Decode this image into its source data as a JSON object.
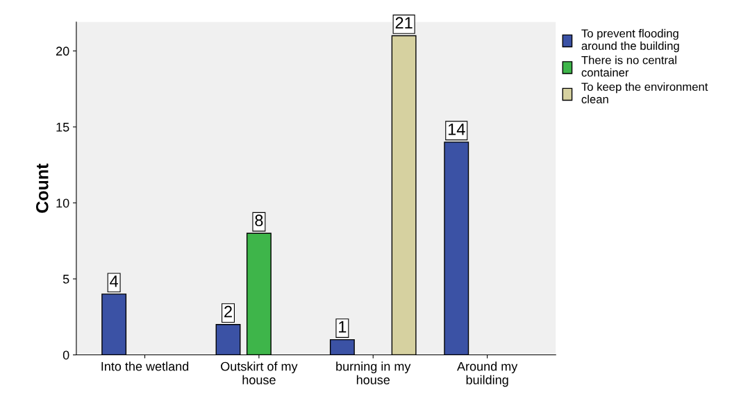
{
  "chart_data": {
    "type": "bar",
    "ylabel": "Count",
    "categories": [
      "Into the wetland",
      "Outskirt of my house",
      "burning in my house",
      "Around my building"
    ],
    "series": [
      {
        "name": "To prevent flooding around the building",
        "color": "#3b52a5",
        "values": [
          4,
          2,
          1,
          14
        ]
      },
      {
        "name": "There is no central container",
        "color": "#3eb54a",
        "values": [
          null,
          8,
          null,
          null
        ]
      },
      {
        "name": "To keep the environment clean",
        "color": "#d6d1a0",
        "values": [
          null,
          null,
          21,
          null
        ]
      }
    ],
    "ylim": [
      0,
      21.9
    ],
    "yticks": [
      0,
      5,
      10,
      15,
      20
    ],
    "grid": false,
    "legend": "top right",
    "data_labels": true
  }
}
